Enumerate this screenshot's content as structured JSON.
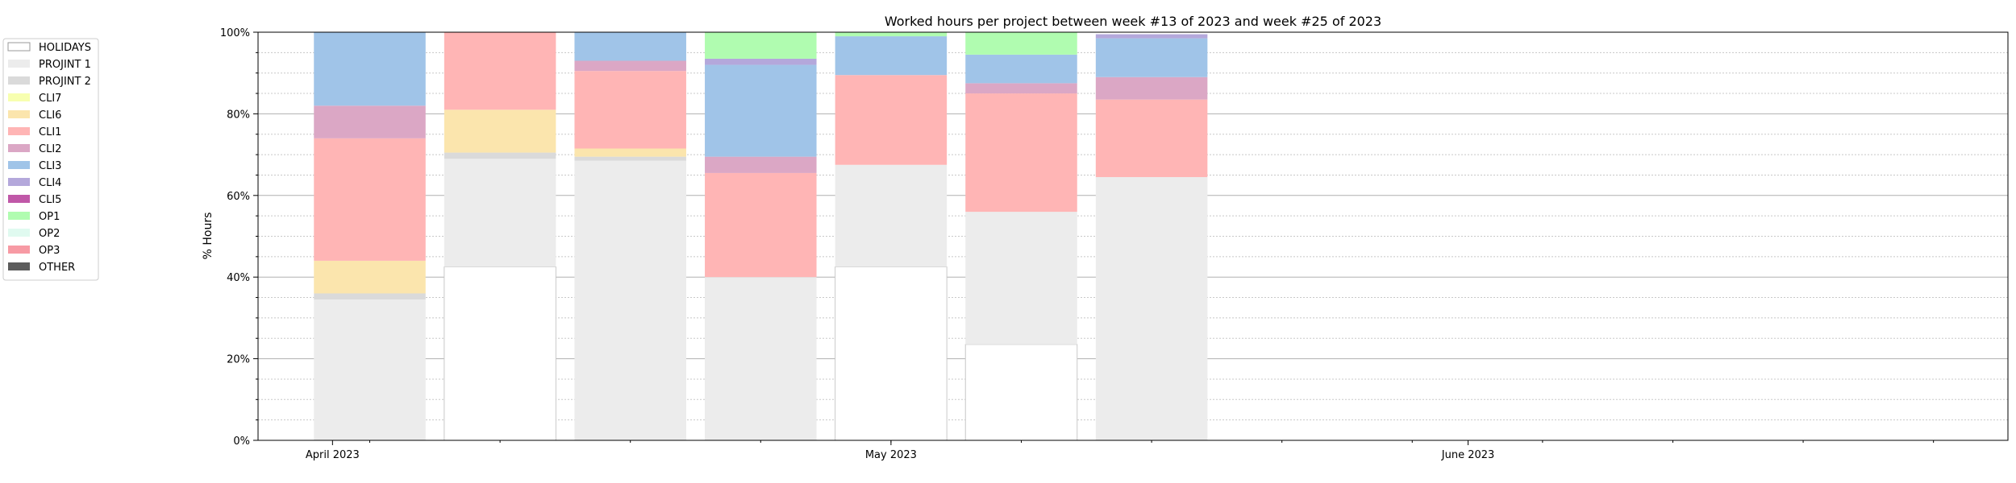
{
  "chart_data": {
    "type": "bar",
    "stacked": true,
    "title": "Worked hours per project between week #13 of 2023 and week #25 of 2023",
    "xlabel": "",
    "ylabel": "% Hours",
    "ylim": [
      0,
      100
    ],
    "yticks": [
      "0%",
      "20%",
      "40%",
      "60%",
      "80%",
      "100%"
    ],
    "xaxis": {
      "type": "date",
      "range": [
        "2023-03-28",
        "2023-06-30"
      ],
      "ticks": [
        {
          "date": "2023-04-01",
          "label": "April 2023"
        },
        {
          "date": "2023-05-01",
          "label": "May 2023"
        },
        {
          "date": "2023-06-01",
          "label": "June 2023"
        }
      ]
    },
    "grid": true,
    "legend_position": "outside-left",
    "bar_dates": [
      "2023-04-03",
      "2023-04-10",
      "2023-04-17",
      "2023-04-24",
      "2023-05-01",
      "2023-05-08",
      "2023-05-15"
    ],
    "series": [
      {
        "name": "HOLIDAYS",
        "color": "#ffffff",
        "values": [
          0,
          42.5,
          0,
          0,
          42.5,
          23.5,
          0
        ]
      },
      {
        "name": "PROJINT 1",
        "color": "#ececec",
        "values": [
          34.5,
          26.5,
          68.5,
          40.0,
          25.0,
          32.5,
          64.5
        ]
      },
      {
        "name": "PROJINT 2",
        "color": "#dadada",
        "values": [
          1.5,
          1.5,
          1.0,
          0,
          0,
          0,
          0
        ]
      },
      {
        "name": "CLI7",
        "color": "#f7ffb0",
        "values": [
          0,
          0,
          0,
          0,
          0,
          0,
          0
        ]
      },
      {
        "name": "CLI6",
        "color": "#fbe5ad",
        "values": [
          8.0,
          10.5,
          2.0,
          0,
          0,
          0,
          0
        ]
      },
      {
        "name": "CLI1",
        "color": "#ffb5b5",
        "values": [
          30.0,
          19.0,
          19.0,
          25.5,
          22.0,
          29.0,
          19.0
        ]
      },
      {
        "name": "CLI2",
        "color": "#dba7c5",
        "values": [
          8.0,
          0,
          2.5,
          4.0,
          0,
          2.5,
          5.5
        ]
      },
      {
        "name": "CLI3",
        "color": "#a0c4e8",
        "values": [
          18.0,
          0,
          7.0,
          22.5,
          9.5,
          7.0,
          9.5
        ]
      },
      {
        "name": "CLI4",
        "color": "#b4a8db",
        "values": [
          0,
          0,
          0,
          1.5,
          0,
          0,
          1.0
        ]
      },
      {
        "name": "CLI5",
        "color": "#c058a8",
        "values": [
          0,
          0,
          0,
          0,
          0,
          0,
          0
        ]
      },
      {
        "name": "OP1",
        "color": "#b0fcb0",
        "values": [
          0,
          0,
          0,
          6.5,
          1.0,
          5.5,
          0
        ]
      },
      {
        "name": "OP2",
        "color": "#e0faf0",
        "values": [
          0,
          0,
          0,
          0,
          0,
          0,
          0
        ]
      },
      {
        "name": "OP3",
        "color": "#f79aa4",
        "values": [
          0,
          0,
          0,
          0,
          0,
          0,
          0
        ]
      },
      {
        "name": "OTHER",
        "color": "#5c5c5c",
        "values": [
          0,
          0,
          0,
          0,
          0,
          0,
          0
        ]
      }
    ]
  }
}
